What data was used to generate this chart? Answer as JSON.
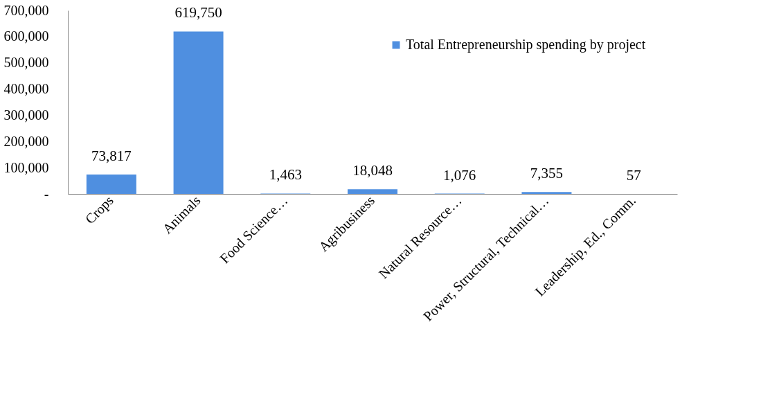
{
  "chart_data": {
    "type": "bar",
    "categories": [
      "Crops",
      "Animals",
      "Food Science…",
      "Agribusiness",
      "Natural Resource…",
      "Power, Structural, Technical…",
      "Leadership, Ed., Comm."
    ],
    "series": [
      {
        "name": "Total Entrepreneurship  spending by project",
        "color": "#4f8fe0",
        "values": [
          73817,
          619750,
          1463,
          18048,
          1076,
          7355,
          57
        ],
        "value_labels": [
          "73,817",
          "619,750",
          "1,463",
          "18,048",
          "1,076",
          "7,355",
          "57"
        ]
      }
    ],
    "ylim": [
      0,
      700000
    ],
    "yticks": [
      {
        "value": 0,
        "label": "-"
      },
      {
        "value": 100000,
        "label": "100,000"
      },
      {
        "value": 200000,
        "label": "200,000"
      },
      {
        "value": 300000,
        "label": "300,000"
      },
      {
        "value": 400000,
        "label": "400,000"
      },
      {
        "value": 500000,
        "label": "500,000"
      },
      {
        "value": 600000,
        "label": "600,000"
      },
      {
        "value": 700000,
        "label": "700,000"
      }
    ],
    "grid": false,
    "legend": "top right"
  }
}
